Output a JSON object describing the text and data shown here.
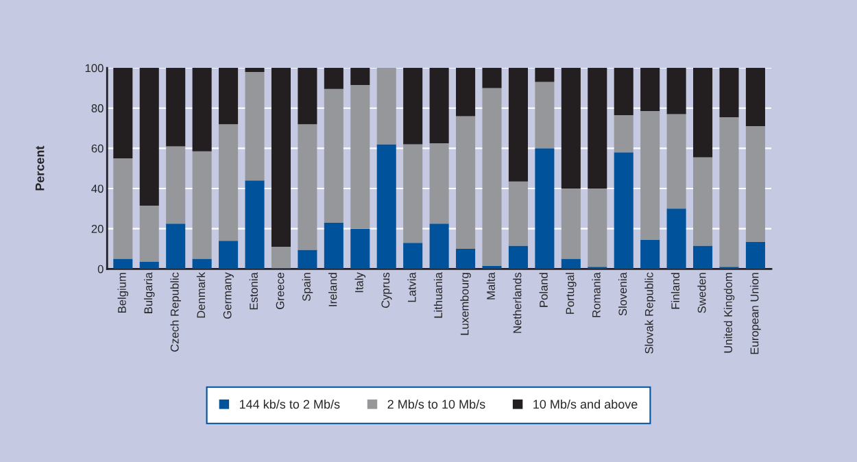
{
  "chart_data": {
    "type": "bar",
    "stacked": true,
    "ylabel": "Percent",
    "categories": [
      "Belgium",
      "Bulgaria",
      "Czech Republic",
      "Denmark",
      "Germany",
      "Estonia",
      "Greece",
      "Spain",
      "Ireland",
      "Italy",
      "Cyprus",
      "Latvia",
      "Lithuania",
      "Luxembourg",
      "Malta",
      "Netherlands",
      "Poland",
      "Portugal",
      "Romania",
      "Slovenia",
      "Slovak Republic",
      "Finland",
      "Sweden",
      "United Kingdom",
      "European Union"
    ],
    "series": [
      {
        "name": "144 kb/s to 2 Mb/s",
        "color": "#00529b",
        "values": [
          5,
          3.5,
          22.5,
          5,
          14,
          44,
          0.5,
          9.5,
          23,
          20,
          62,
          13,
          22.5,
          10,
          1.5,
          11.5,
          60,
          5,
          1,
          58,
          14.5,
          30,
          11.5,
          1,
          13.5
        ]
      },
      {
        "name": "2 Mb/s to 10 Mb/s",
        "color": "#96979b",
        "values": [
          50,
          28,
          38.5,
          53.5,
          58,
          54,
          10.5,
          62.5,
          66.5,
          71.5,
          38,
          49,
          40,
          66,
          88.5,
          32,
          33,
          35,
          39,
          18.5,
          64,
          47,
          44,
          74.5,
          57.5
        ]
      },
      {
        "name": "10 Mb/s and above",
        "color": "#231f20",
        "values": [
          45,
          68.5,
          39,
          41.5,
          28,
          2,
          89,
          28,
          10.5,
          8.5,
          0,
          38,
          37.5,
          24,
          10,
          56.5,
          7,
          60,
          60,
          23.5,
          21.5,
          23,
          44.5,
          24.5,
          29
        ]
      }
    ],
    "ylim": [
      0,
      100
    ],
    "yticks": [
      0,
      20,
      40,
      60,
      80,
      100
    ],
    "grid": "y",
    "legend": "bottom"
  }
}
